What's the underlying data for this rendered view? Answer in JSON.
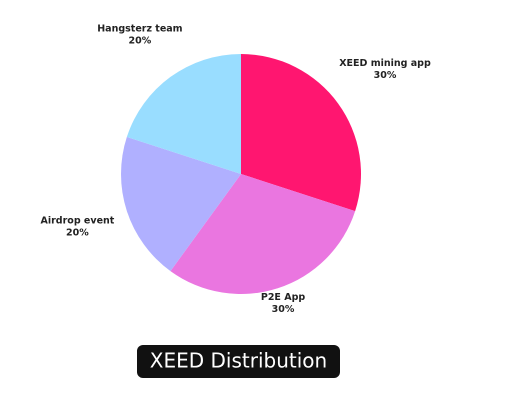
{
  "chart_data": {
    "type": "pie",
    "title": "XEED Distribution",
    "categories": [
      "XEED mining app",
      "P2E App",
      "Airdrop event",
      "Hangsterz team"
    ],
    "values": [
      30,
      30,
      20,
      20
    ],
    "value_labels": [
      "30%",
      "30%",
      "20%",
      "20%"
    ],
    "colors": [
      "#ff1670",
      "#ea76e0",
      "#b0b0ff",
      "#99ddff"
    ]
  }
}
